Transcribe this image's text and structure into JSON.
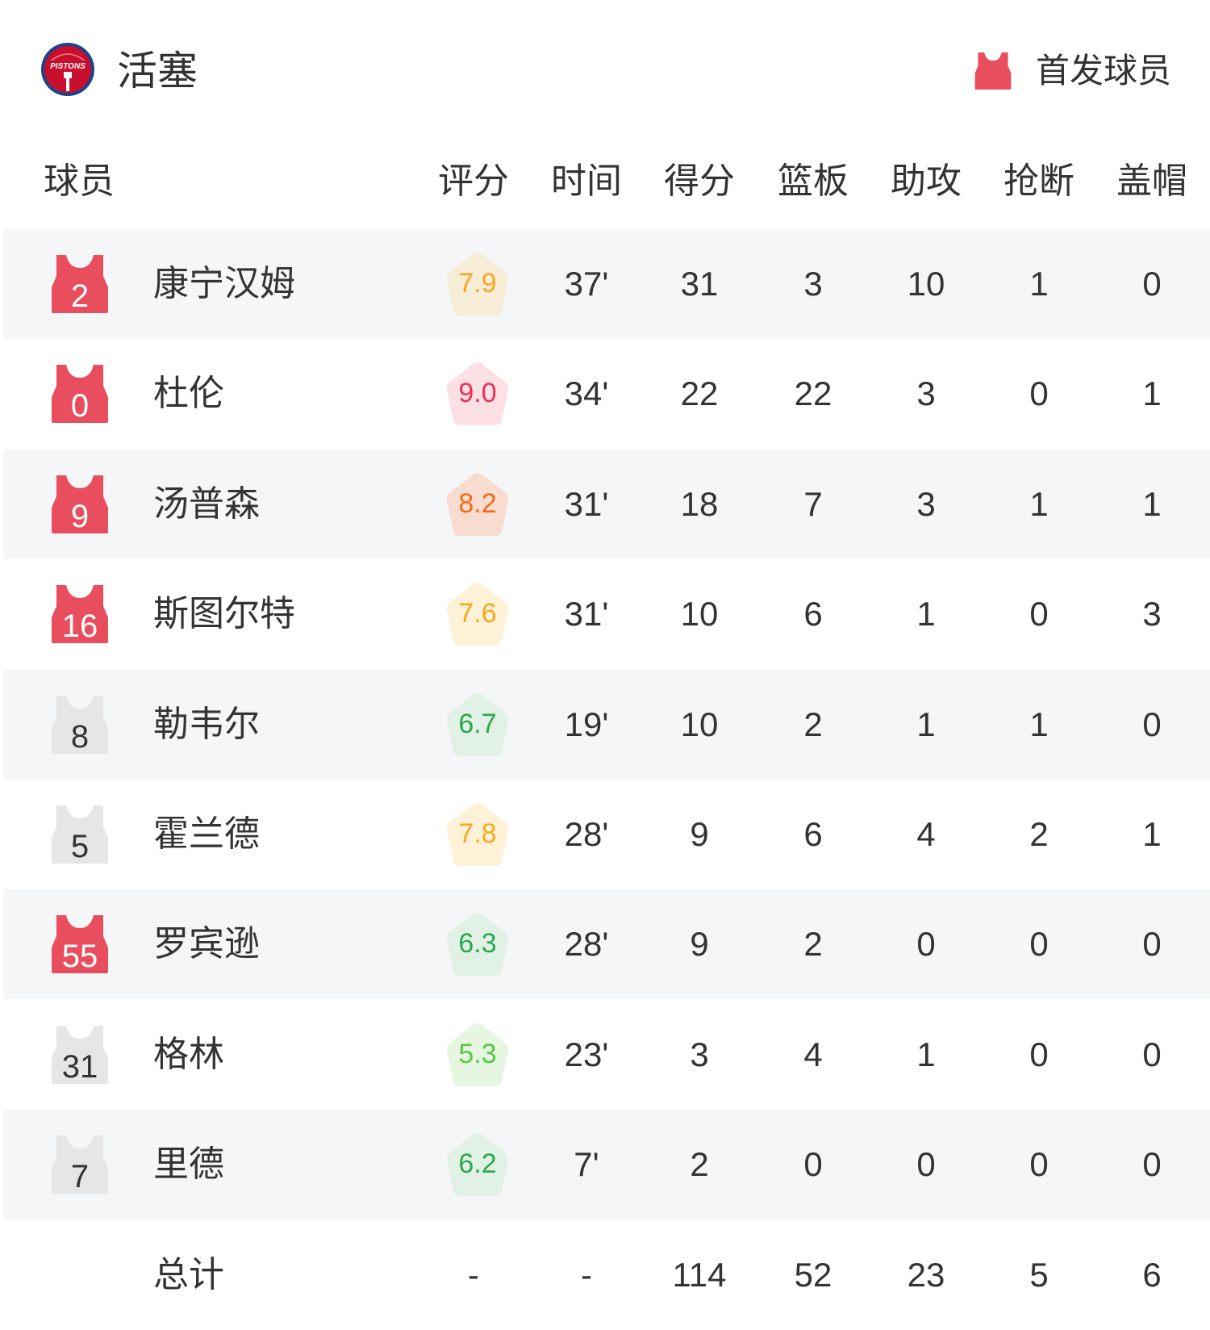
{
  "team": {
    "name": "活塞",
    "logo_text": "PISTONS",
    "starter_legend": "首发球员",
    "starter_color": "#e84e5e"
  },
  "columns": [
    "球员",
    "评分",
    "时间",
    "得分",
    "篮板",
    "助攻",
    "抢断",
    "盖帽"
  ],
  "players": [
    {
      "number": "2",
      "name": "康宁汉姆",
      "starter": true,
      "rating": "7.9",
      "rating_fg": "#f5a623",
      "rating_bg": "#f7ecd5",
      "min": "37'",
      "pts": "31",
      "reb": "3",
      "ast": "10",
      "stl": "1",
      "blk": "0"
    },
    {
      "number": "0",
      "name": "杜伦",
      "starter": true,
      "rating": "9.0",
      "rating_fg": "#ec2f52",
      "rating_bg": "#fde0e6",
      "min": "34'",
      "pts": "22",
      "reb": "22",
      "ast": "3",
      "stl": "0",
      "blk": "1"
    },
    {
      "number": "9",
      "name": "汤普森",
      "starter": true,
      "rating": "8.2",
      "rating_fg": "#f26a1b",
      "rating_bg": "#f7dccf",
      "min": "31'",
      "pts": "18",
      "reb": "7",
      "ast": "3",
      "stl": "1",
      "blk": "1"
    },
    {
      "number": "16",
      "name": "斯图尔特",
      "starter": true,
      "rating": "7.6",
      "rating_fg": "#f8a91c",
      "rating_bg": "#fdf1d8",
      "min": "31'",
      "pts": "10",
      "reb": "6",
      "ast": "1",
      "stl": "0",
      "blk": "3"
    },
    {
      "number": "8",
      "name": "勒韦尔",
      "starter": false,
      "rating": "6.7",
      "rating_fg": "#2aa84a",
      "rating_bg": "#e2f1e6",
      "min": "19'",
      "pts": "10",
      "reb": "2",
      "ast": "1",
      "stl": "1",
      "blk": "0"
    },
    {
      "number": "5",
      "name": "霍兰德",
      "starter": false,
      "rating": "7.8",
      "rating_fg": "#f8a91c",
      "rating_bg": "#fdf1d8",
      "min": "28'",
      "pts": "9",
      "reb": "6",
      "ast": "4",
      "stl": "2",
      "blk": "1"
    },
    {
      "number": "55",
      "name": "罗宾逊",
      "starter": true,
      "rating": "6.3",
      "rating_fg": "#2aa84a",
      "rating_bg": "#e2f1e6",
      "min": "28'",
      "pts": "9",
      "reb": "2",
      "ast": "0",
      "stl": "0",
      "blk": "0"
    },
    {
      "number": "31",
      "name": "格林",
      "starter": false,
      "rating": "5.3",
      "rating_fg": "#5cc447",
      "rating_bg": "#e5f7e1",
      "min": "23'",
      "pts": "3",
      "reb": "4",
      "ast": "1",
      "stl": "0",
      "blk": "0"
    },
    {
      "number": "7",
      "name": "里德",
      "starter": false,
      "rating": "6.2",
      "rating_fg": "#2aa84a",
      "rating_bg": "#e2f1e6",
      "min": "7'",
      "pts": "2",
      "reb": "0",
      "ast": "0",
      "stl": "0",
      "blk": "0"
    }
  ],
  "totals": {
    "label": "总计",
    "rating": "-",
    "min": "-",
    "pts": "114",
    "reb": "52",
    "ast": "23",
    "stl": "5",
    "blk": "6"
  }
}
